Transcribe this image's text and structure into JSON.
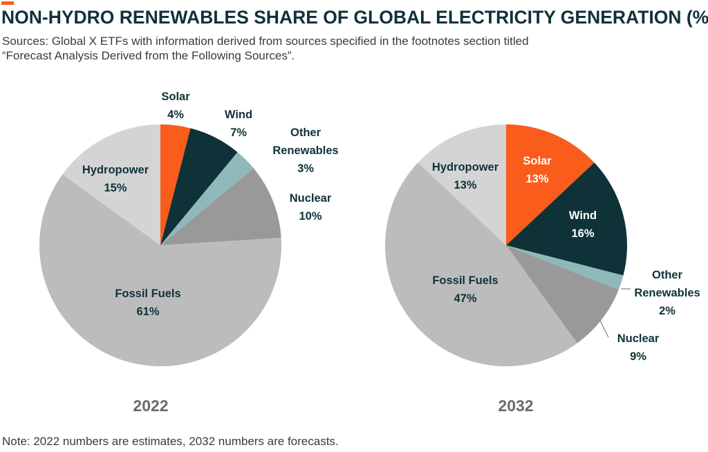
{
  "header": {
    "title": "NON-HYDRO RENEWABLES SHARE OF GLOBAL ELECTRICITY GENERATION (%)",
    "subtitle_line1": "Sources: Global X ETFs with information derived from sources specified in the footnotes section titled",
    "subtitle_line2": "“Forecast Analysis Derived from the Following Sources”.",
    "accent_color": "#fa5c1b"
  },
  "footer": {
    "note": "Note: 2022 numbers are estimates, 2032 numbers are forecasts."
  },
  "colors": {
    "Solar": "#fa5c1b",
    "Wind": "#0f3238",
    "Other Renewables": "#8fb8ba",
    "Nuclear": "#999999",
    "Fossil Fuels": "#bcbcbc",
    "Hydropower": "#d4d4d4",
    "label_dark": "#0f3238",
    "label_light": "#ffffff"
  },
  "chart_data": [
    {
      "type": "pie",
      "title": "2022",
      "slices": [
        {
          "name": "Solar",
          "value": 4,
          "label": "4%"
        },
        {
          "name": "Wind",
          "value": 7,
          "label": "7%"
        },
        {
          "name": "Other Renewables",
          "value": 3,
          "label": "3%"
        },
        {
          "name": "Nuclear",
          "value": 10,
          "label": "10%"
        },
        {
          "name": "Fossil Fuels",
          "value": 61,
          "label": "61%"
        },
        {
          "name": "Hydropower",
          "value": 15,
          "label": "15%"
        }
      ]
    },
    {
      "type": "pie",
      "title": "2032",
      "slices": [
        {
          "name": "Solar",
          "value": 13,
          "label": "13%"
        },
        {
          "name": "Wind",
          "value": 16,
          "label": "16%"
        },
        {
          "name": "Other Renewables",
          "value": 2,
          "label": "2%"
        },
        {
          "name": "Nuclear",
          "value": 9,
          "label": "9%"
        },
        {
          "name": "Fossil Fuels",
          "value": 47,
          "label": "47%"
        },
        {
          "name": "Hydropower",
          "value": 13,
          "label": "13%"
        }
      ]
    }
  ]
}
